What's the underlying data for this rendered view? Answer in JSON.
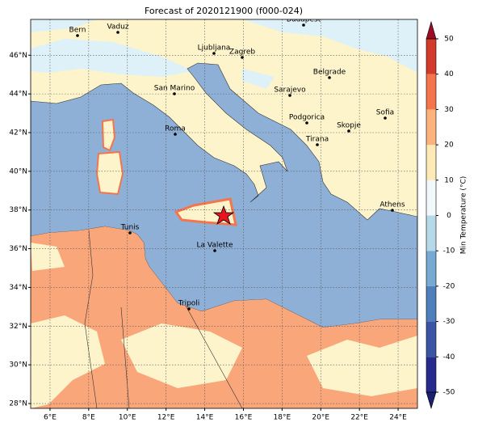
{
  "title": "Forecast of 2020121900 (f000-024)",
  "map": {
    "xlim": [
      5,
      25
    ],
    "ylim": [
      27.75,
      47.85
    ],
    "xticks": [
      {
        "value": 6,
        "label": "6°E"
      },
      {
        "value": 8,
        "label": "8°E"
      },
      {
        "value": 10,
        "label": "10°E"
      },
      {
        "value": 12,
        "label": "12°E"
      },
      {
        "value": 14,
        "label": "14°E"
      },
      {
        "value": 16,
        "label": "16°E"
      },
      {
        "value": 18,
        "label": "18°E"
      },
      {
        "value": 20,
        "label": "20°E"
      },
      {
        "value": 22,
        "label": "22°E"
      },
      {
        "value": 24,
        "label": "24°E"
      }
    ],
    "yticks": [
      {
        "value": 28,
        "label": "28°N"
      },
      {
        "value": 30,
        "label": "30°N"
      },
      {
        "value": 32,
        "label": "32°N"
      },
      {
        "value": 34,
        "label": "34°N"
      },
      {
        "value": 36,
        "label": "36°N"
      },
      {
        "value": 38,
        "label": "38°N"
      },
      {
        "value": 40,
        "label": "40°N"
      },
      {
        "value": 42,
        "label": "42°N"
      },
      {
        "value": 44,
        "label": "44°N"
      },
      {
        "value": 46,
        "label": "46°N"
      }
    ],
    "grid": true,
    "cities": [
      "Bern",
      "Vaduz",
      "Budapest",
      "Ljubljana",
      "Zagreb",
      "Belgrade",
      "San Marino",
      "Sarajevo",
      "Sofia",
      "Roma",
      "Podgorica",
      "Skopje",
      "Tirana",
      "Athens",
      "Tunis",
      "La Valette",
      "Tripoli"
    ]
  },
  "colorbar": {
    "label": "Min Temperature (°C)",
    "lim": [
      -50,
      50
    ],
    "ticks": [
      -50,
      -40,
      -30,
      -20,
      -10,
      0,
      10,
      20,
      30,
      40,
      50
    ],
    "colors": [
      "#262a8c",
      "#3b55a5",
      "#4f7fba",
      "#78a9d2",
      "#b6d9ea",
      "#f3f9fb",
      "#fdeab6",
      "#fdb27c",
      "#f4754c",
      "#d13a2c"
    ],
    "under_color": "#1a1f70",
    "over_color": "#9e0b25"
  }
}
